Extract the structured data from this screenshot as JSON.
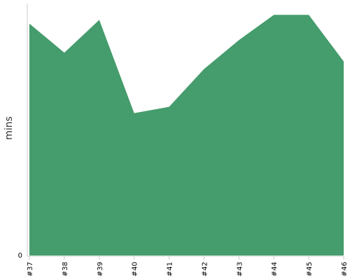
{
  "chart_data": {
    "type": "area",
    "title": "",
    "xlabel": "",
    "ylabel": "mins",
    "categories": [
      "#37",
      "#38",
      "#39",
      "#40",
      "#41",
      "#42",
      "#43",
      "#44",
      "#45",
      "#46"
    ],
    "series": [
      {
        "values": [
          92,
          80.5,
          93.5,
          56.5,
          59,
          74,
          85.5,
          95.5,
          95.5,
          77
        ]
      }
    ],
    "ylim": [
      0,
      100
    ],
    "y_tick_labels": [
      "0"
    ],
    "grid": false,
    "legend": "none",
    "colors": {
      "area": "#459c6c",
      "axis": "#cccccc",
      "text": "#000000"
    }
  }
}
